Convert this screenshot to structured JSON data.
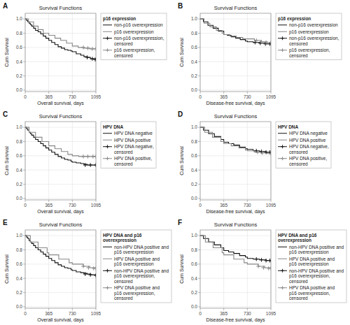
{
  "chart_data": [
    {
      "type": "step",
      "title": "Survival Functions",
      "annotation": "A",
      "xlabel": "Overall survival, days",
      "ylabel": "Cum Survival",
      "xlim": [
        0,
        1095
      ],
      "ylim": [
        -0.02,
        1.08
      ],
      "xticks": [
        0,
        365,
        730,
        1095
      ],
      "yticks": [
        {
          "value": 0.0,
          "label": "0.0"
        },
        0.2,
        0.4,
        0.6,
        0.8,
        {
          "value": 1.0,
          "label": "1.0"
        }
      ],
      "grid": true,
      "legend": "upper right",
      "legend_title": "p16 expression",
      "series": [
        {
          "name": "non-p16 overexpression",
          "color": "#111111",
          "type": "step",
          "x": [
            0,
            20,
            40,
            60,
            80,
            100,
            130,
            160,
            200,
            240,
            280,
            320,
            365,
            410,
            460,
            510,
            560,
            610,
            660,
            710,
            730,
            790,
            860,
            910,
            960,
            1010,
            1095
          ],
          "values": [
            1.0,
            0.98,
            0.96,
            0.94,
            0.92,
            0.9,
            0.87,
            0.84,
            0.82,
            0.79,
            0.76,
            0.73,
            0.7,
            0.67,
            0.64,
            0.61,
            0.59,
            0.57,
            0.56,
            0.55,
            0.54,
            0.51,
            0.49,
            0.47,
            0.46,
            0.44,
            0.43
          ]
        },
        {
          "name": "p16 overexpression",
          "color": "#888888",
          "type": "step",
          "x": [
            0,
            50,
            130,
            200,
            280,
            365,
            460,
            550,
            640,
            730,
            820,
            910,
            1000,
            1095
          ],
          "values": [
            1.0,
            0.96,
            0.9,
            0.85,
            0.8,
            0.77,
            0.73,
            0.7,
            0.66,
            0.62,
            0.6,
            0.59,
            0.58,
            0.58
          ]
        },
        {
          "name": "non-p16 overexpression,\ncensored",
          "color": "#111111",
          "type": "scatter",
          "marker": "plus",
          "x": [
            960,
            1040,
            1085
          ],
          "values": [
            0.46,
            0.44,
            0.43
          ]
        },
        {
          "name": "p16 overexpression,\ncensored",
          "color": "#888888",
          "type": "scatter",
          "marker": "plus",
          "x": [
            900,
            970,
            1040,
            1095
          ],
          "values": [
            0.6,
            0.59,
            0.58,
            0.58
          ]
        }
      ]
    },
    {
      "type": "step",
      "title": "Survival Functions",
      "annotation": "B",
      "xlabel": "Disease-free survival, days",
      "ylabel": "Cum Survival",
      "xlim": [
        0,
        1095
      ],
      "ylim": [
        -0.02,
        1.08
      ],
      "xticks": [
        0,
        365,
        730,
        1095
      ],
      "yticks": [
        {
          "value": 0.0,
          "label": "0.0"
        },
        0.2,
        0.4,
        0.6,
        0.8,
        {
          "value": 1.0,
          "label": "1.0"
        }
      ],
      "grid": true,
      "legend": "upper right",
      "legend_title": "p16 expression",
      "series": [
        {
          "name": "non-p16 overexpression",
          "color": "#111111",
          "type": "step",
          "x": [
            0,
            50,
            120,
            200,
            280,
            365,
            420,
            480,
            550,
            620,
            700,
            730,
            820,
            920,
            1020,
            1095
          ],
          "values": [
            1.0,
            0.96,
            0.91,
            0.87,
            0.83,
            0.78,
            0.77,
            0.75,
            0.73,
            0.71,
            0.69,
            0.68,
            0.67,
            0.66,
            0.65,
            0.65
          ]
        },
        {
          "name": "p16 overexpression",
          "color": "#888888",
          "type": "step",
          "x": [
            0,
            60,
            150,
            250,
            340,
            365,
            460,
            560,
            660,
            730,
            840,
            940,
            1040,
            1095
          ],
          "values": [
            1.0,
            0.94,
            0.89,
            0.84,
            0.8,
            0.78,
            0.76,
            0.74,
            0.72,
            0.72,
            0.7,
            0.68,
            0.67,
            0.67
          ]
        },
        {
          "name": "non-p16 overexpression,\ncensored",
          "color": "#111111",
          "type": "scatter",
          "marker": "plus",
          "x": [
            850,
            930,
            1010,
            1080
          ],
          "values": [
            0.67,
            0.66,
            0.65,
            0.65
          ]
        },
        {
          "name": "p16 overexpression,\ncensored",
          "color": "#888888",
          "type": "scatter",
          "marker": "plus",
          "x": [
            870,
            950,
            1020,
            1095
          ],
          "values": [
            0.7,
            0.68,
            0.67,
            0.67
          ]
        }
      ]
    },
    {
      "type": "step",
      "title": "Survival Functions",
      "annotation": "C",
      "xlabel": "Overall survival, days",
      "ylabel": "Cum Survival",
      "xlim": [
        0,
        1095
      ],
      "ylim": [
        -0.02,
        1.08
      ],
      "xticks": [
        0,
        365,
        730,
        1095
      ],
      "yticks": [
        {
          "value": 0.0,
          "label": "0.0"
        },
        0.2,
        0.4,
        0.6,
        0.8,
        {
          "value": 1.0,
          "label": "1.0"
        }
      ],
      "grid": true,
      "legend": "upper right",
      "legend_title": "HPV DNA",
      "series": [
        {
          "name": "HPV DNA negative",
          "color": "#111111",
          "type": "step",
          "x": [
            0,
            20,
            40,
            60,
            80,
            100,
            130,
            160,
            200,
            240,
            280,
            320,
            365,
            410,
            460,
            510,
            560,
            610,
            660,
            710,
            730,
            790,
            860,
            910,
            960,
            1010,
            1095
          ],
          "values": [
            1.0,
            0.98,
            0.96,
            0.93,
            0.91,
            0.89,
            0.86,
            0.83,
            0.8,
            0.77,
            0.74,
            0.71,
            0.68,
            0.65,
            0.62,
            0.59,
            0.57,
            0.55,
            0.54,
            0.52,
            0.51,
            0.5,
            0.49,
            0.48,
            0.47,
            0.47,
            0.47
          ]
        },
        {
          "name": "HPV DNA positive",
          "color": "#888888",
          "type": "step",
          "x": [
            0,
            60,
            160,
            260,
            365,
            460,
            560,
            660,
            730,
            830,
            930,
            1030,
            1095
          ],
          "values": [
            1.0,
            0.93,
            0.86,
            0.8,
            0.74,
            0.7,
            0.66,
            0.62,
            0.6,
            0.59,
            0.59,
            0.59,
            0.59
          ]
        },
        {
          "name": "HPV DNA negative,\ncensored",
          "color": "#111111",
          "type": "scatter",
          "marker": "plus",
          "x": [
            930,
            1010,
            1095
          ],
          "values": [
            0.47,
            0.47,
            0.47
          ]
        },
        {
          "name": "HPV DNA positive,\ncensored",
          "color": "#888888",
          "type": "scatter",
          "marker": "plus",
          "x": [
            900,
            970,
            1050,
            1095
          ],
          "values": [
            0.59,
            0.59,
            0.59,
            0.59
          ]
        }
      ]
    },
    {
      "type": "step",
      "title": "Survival Functions",
      "annotation": "D",
      "xlabel": "Disease-free survival, days",
      "ylabel": "Cum Survival",
      "xlim": [
        0,
        1095
      ],
      "ylim": [
        -0.02,
        1.08
      ],
      "xticks": [
        0,
        365,
        730,
        1095
      ],
      "yticks": [
        {
          "value": 0.0,
          "label": "0.0"
        },
        0.2,
        0.4,
        0.6,
        0.8,
        {
          "value": 1.0,
          "label": "1.0"
        }
      ],
      "grid": true,
      "legend": "upper right",
      "legend_title": "HPV DNA",
      "series": [
        {
          "name": "HPV DNA negative",
          "color": "#111111",
          "type": "step",
          "x": [
            0,
            50,
            130,
            220,
            320,
            365,
            440,
            520,
            610,
            700,
            730,
            820,
            920,
            1020,
            1095
          ],
          "values": [
            1.0,
            0.96,
            0.91,
            0.87,
            0.83,
            0.79,
            0.77,
            0.75,
            0.72,
            0.7,
            0.69,
            0.67,
            0.66,
            0.65,
            0.65
          ]
        },
        {
          "name": "HPV DNA positive",
          "color": "#888888",
          "type": "step",
          "x": [
            0,
            70,
            190,
            320,
            365,
            480,
            600,
            700,
            730,
            840,
            940,
            1040,
            1095
          ],
          "values": [
            1.0,
            0.93,
            0.86,
            0.8,
            0.77,
            0.74,
            0.71,
            0.68,
            0.67,
            0.65,
            0.64,
            0.63,
            0.63
          ]
        },
        {
          "name": "HPV DNA negative,\ncensored",
          "color": "#111111",
          "type": "scatter",
          "marker": "plus",
          "x": [
            870,
            950,
            1020,
            1080
          ],
          "values": [
            0.67,
            0.66,
            0.65,
            0.65
          ]
        },
        {
          "name": "HPV DNA positive,\ncensored",
          "color": "#888888",
          "type": "scatter",
          "marker": "plus",
          "x": [
            890,
            960,
            1095
          ],
          "values": [
            0.65,
            0.64,
            0.63
          ]
        }
      ]
    },
    {
      "type": "step",
      "title": "Survival Functions",
      "annotation": "E",
      "xlabel": "Overall survival, days",
      "ylabel": "Cum Survival",
      "xlim": [
        0,
        1095
      ],
      "ylim": [
        -0.02,
        1.08
      ],
      "xticks": [
        0,
        365,
        730,
        1095
      ],
      "yticks": [
        {
          "value": 0.0,
          "label": "0.0"
        },
        0.2,
        0.4,
        0.6,
        0.8,
        {
          "value": 1.0,
          "label": "1.0"
        }
      ],
      "grid": true,
      "legend": "upper right",
      "legend_title": "HPV DNA and p16\noverexpression",
      "series": [
        {
          "name": "non-HPV DNA positive and\np16 overexpression",
          "color": "#111111",
          "type": "step",
          "x": [
            0,
            20,
            40,
            60,
            80,
            100,
            130,
            160,
            200,
            240,
            280,
            320,
            365,
            410,
            460,
            510,
            560,
            610,
            660,
            710,
            730,
            790,
            860,
            910,
            960,
            1010,
            1095
          ],
          "values": [
            1.0,
            0.98,
            0.96,
            0.93,
            0.91,
            0.89,
            0.86,
            0.83,
            0.8,
            0.77,
            0.74,
            0.71,
            0.68,
            0.65,
            0.62,
            0.59,
            0.57,
            0.55,
            0.54,
            0.52,
            0.51,
            0.49,
            0.48,
            0.47,
            0.46,
            0.45,
            0.44
          ]
        },
        {
          "name": "HPV DNA positive and\np16 overexpression",
          "color": "#888888",
          "type": "step",
          "x": [
            0,
            80,
            200,
            340,
            365,
            520,
            680,
            730,
            900,
            1000,
            1095
          ],
          "values": [
            1.0,
            0.91,
            0.83,
            0.76,
            0.73,
            0.67,
            0.62,
            0.6,
            0.57,
            0.55,
            0.54
          ]
        },
        {
          "name": "non-HPV DNA positive and\np16 overexpression,\ncensored",
          "color": "#111111",
          "type": "scatter",
          "marker": "plus",
          "x": [
            930,
            1010,
            1095
          ],
          "values": [
            0.46,
            0.45,
            0.44
          ]
        },
        {
          "name": "HPV DNA positive and\np16 overexpression,\ncensored",
          "color": "#888888",
          "type": "scatter",
          "marker": "plus",
          "x": [
            900,
            980,
            1060,
            1095
          ],
          "values": [
            0.57,
            0.55,
            0.54,
            0.54
          ]
        }
      ]
    },
    {
      "type": "step",
      "title": "Survival Functions",
      "annotation": "F",
      "xlabel": "Disease-free survival, days",
      "ylabel": "Cum Survival",
      "xlim": [
        0,
        1095
      ],
      "ylim": [
        -0.02,
        1.08
      ],
      "xticks": [
        0,
        365,
        730,
        1095
      ],
      "yticks": [
        {
          "value": 0.0,
          "label": "0.0"
        },
        0.2,
        0.4,
        0.6,
        0.8,
        {
          "value": 1.0,
          "label": "1.0"
        }
      ],
      "grid": true,
      "legend": "upper right",
      "legend_title": "HPV DNA and p16\noverexpression",
      "series": [
        {
          "name": "non-HPV DNA positive and\np16 overexpression",
          "color": "#111111",
          "type": "step",
          "x": [
            0,
            50,
            130,
            220,
            320,
            365,
            440,
            520,
            610,
            700,
            730,
            820,
            920,
            1020,
            1095
          ],
          "values": [
            1.0,
            0.96,
            0.91,
            0.87,
            0.83,
            0.79,
            0.77,
            0.75,
            0.72,
            0.7,
            0.68,
            0.67,
            0.66,
            0.65,
            0.65
          ]
        },
        {
          "name": "HPV DNA positive and\np16 overexpression",
          "color": "#888888",
          "type": "step",
          "x": [
            0,
            80,
            200,
            340,
            365,
            520,
            680,
            730,
            900,
            1000,
            1095
          ],
          "values": [
            1.0,
            0.91,
            0.83,
            0.76,
            0.73,
            0.67,
            0.62,
            0.6,
            0.57,
            0.55,
            0.54
          ]
        },
        {
          "name": "non-HPV DNA positive and\np16 overexpression,\ncensored",
          "color": "#111111",
          "type": "scatter",
          "marker": "plus",
          "x": [
            870,
            950,
            1020,
            1080
          ],
          "values": [
            0.67,
            0.66,
            0.65,
            0.65
          ]
        },
        {
          "name": "HPV DNA positive and\np16 overexpression,\ncensored",
          "color": "#888888",
          "type": "scatter",
          "marker": "plus",
          "x": [
            900,
            980,
            1060,
            1095
          ],
          "values": [
            0.57,
            0.55,
            0.54,
            0.54
          ]
        }
      ]
    }
  ]
}
